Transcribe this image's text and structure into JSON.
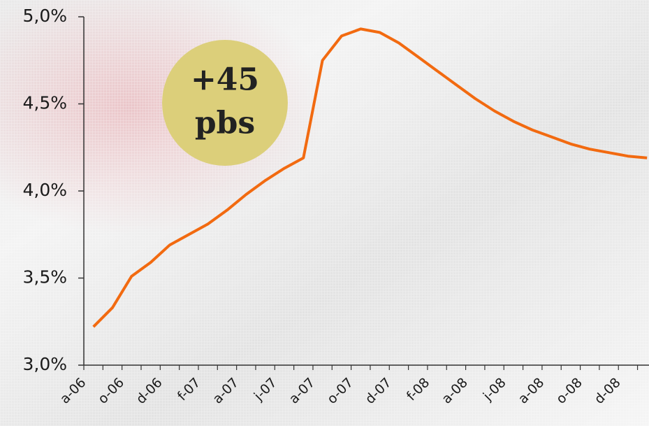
{
  "chart_data": {
    "type": "line",
    "categories": [
      "a-06",
      null,
      "o-06",
      null,
      "d-06",
      null,
      "f-07",
      null,
      "a-07",
      null,
      "j-07",
      null,
      "a-07",
      null,
      "o-07",
      null,
      "d-07",
      null,
      "f-08",
      null,
      "a-08",
      null,
      "j-08",
      null,
      "a-08",
      null,
      "o-08",
      null,
      "d-08",
      null
    ],
    "series": [
      {
        "color": "#f26a10",
        "values": [
          3.22,
          3.33,
          3.51,
          3.59,
          3.69,
          3.75,
          3.81,
          3.89,
          3.98,
          4.06,
          4.13,
          4.19,
          4.75,
          4.89,
          4.93,
          4.91,
          4.85,
          4.77,
          4.69,
          4.61,
          4.53,
          4.46,
          4.4,
          4.35,
          4.31,
          4.27,
          4.24,
          4.22,
          4.2,
          4.19
        ]
      }
    ],
    "ylim": [
      3.0,
      5.0
    ],
    "yticks": [
      {
        "value": 3.0,
        "label": "3,0%"
      },
      {
        "value": 3.5,
        "label": "3,5%"
      },
      {
        "value": 4.0,
        "label": "4,0%"
      },
      {
        "value": 4.5,
        "label": "4,5%"
      },
      {
        "value": 5.0,
        "label": "5,0%"
      }
    ],
    "annotation_lines": [
      "+45",
      "pbs"
    ],
    "annotation_color": "#dccf7a"
  }
}
